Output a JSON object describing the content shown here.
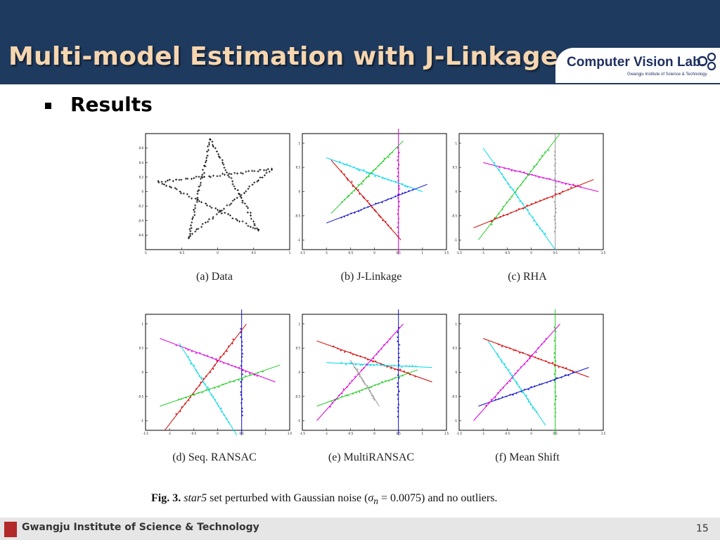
{
  "slide": {
    "title": "Multi-model Estimation with J-Linkage",
    "bullet": "Results",
    "page_number": "15",
    "footer_institute": "Gwangju Institute of Science & Technology"
  },
  "logo": {
    "main": "Computer Vision Lab.",
    "sub": "Gwangju Institute of Science & Technology"
  },
  "colors": {
    "header_bg": "#1f3a5f",
    "title_text": "#f6d6b0",
    "footer_bg": "#e6e6e6",
    "red": "#d40000",
    "green": "#22cc22",
    "blue": "#1010cc",
    "cyan": "#00d8e8",
    "magenta": "#dd00dd",
    "gray": "#999999",
    "black": "#000000"
  },
  "figure": {
    "label": "Fig. 3.",
    "dataset": "star5",
    "text_mid": "set perturbed with Gaussian noise (",
    "sigma_symbol": "σ",
    "sigma_sub": "n",
    "sigma_value": "= 0.0075)",
    "text_end": "and no outliers."
  },
  "chart_data": [
    {
      "type": "scatter",
      "title": "(a) Data",
      "xlim": [
        -1,
        1
      ],
      "ylim": [
        -0.8,
        0.8
      ],
      "xticks": [
        "-1",
        "-0.5",
        "0",
        "0.5",
        "1"
      ],
      "yticks": [
        "0.6",
        "0.4",
        "0.2",
        "0",
        "-0.2",
        "-0.4",
        "-0.6"
      ],
      "series": [
        {
          "color": "#000000",
          "points": "star5 samples along 5 lines"
        }
      ],
      "lines": []
    },
    {
      "type": "scatter",
      "title": "(b) J-Linkage",
      "xlim": [
        -1.5,
        1.5
      ],
      "ylim": [
        -1.2,
        1.2
      ],
      "xticks": [
        "-1.5",
        "-1",
        "-0.5",
        "0",
        "0.5",
        "1",
        "1.5"
      ],
      "yticks": [
        "1",
        "0.5",
        "0",
        "-0.5",
        "-1"
      ],
      "lines": [
        {
          "color": "#dd00dd",
          "from": [
            0.5,
            1.3
          ],
          "to": [
            0.5,
            -1.3
          ]
        },
        {
          "color": "#00d8e8",
          "from": [
            -1.0,
            0.7
          ],
          "to": [
            1.0,
            0.0
          ]
        },
        {
          "color": "#22cc22",
          "from": [
            -0.9,
            -0.45
          ],
          "to": [
            0.6,
            1.05
          ]
        },
        {
          "color": "#1010cc",
          "from": [
            -1.0,
            -0.65
          ],
          "to": [
            1.1,
            0.15
          ]
        },
        {
          "color": "#d40000",
          "from": [
            -0.9,
            0.65
          ],
          "to": [
            0.55,
            -1.0
          ]
        }
      ]
    },
    {
      "type": "scatter",
      "title": "(c) RHA",
      "xlim": [
        -1.5,
        1.5
      ],
      "ylim": [
        -1.2,
        1.2
      ],
      "xticks": [
        "-1.5",
        "-1",
        "-0.5",
        "0",
        "0.5",
        "1",
        "1.5"
      ],
      "yticks": [
        "1",
        "0.5",
        "0",
        "-0.5",
        "-1"
      ],
      "lines": [
        {
          "color": "#999999",
          "from": [
            0.5,
            1.2
          ],
          "to": [
            0.5,
            -1.2
          ]
        },
        {
          "color": "#dd00dd",
          "from": [
            -1.0,
            0.6
          ],
          "to": [
            1.4,
            0.0
          ]
        },
        {
          "color": "#22cc22",
          "from": [
            -1.1,
            -1.0
          ],
          "to": [
            0.6,
            1.2
          ]
        },
        {
          "color": "#00d8e8",
          "from": [
            -1.0,
            0.9
          ],
          "to": [
            0.5,
            -1.2
          ]
        },
        {
          "color": "#d40000",
          "from": [
            -1.2,
            -0.75
          ],
          "to": [
            1.3,
            0.25
          ]
        }
      ]
    },
    {
      "type": "scatter",
      "title": "(d) Seq. RANSAC",
      "xlim": [
        -1.5,
        1.5
      ],
      "ylim": [
        -1.2,
        1.2
      ],
      "xticks": [
        "-1.5",
        "-1",
        "-0.5",
        "0",
        "0.5",
        "1",
        "1.5"
      ],
      "yticks": [
        "1",
        "0.5",
        "0",
        "-0.5",
        "-1"
      ],
      "lines": [
        {
          "color": "#1010cc",
          "from": [
            0.5,
            1.3
          ],
          "to": [
            0.5,
            -1.3
          ]
        },
        {
          "color": "#d40000",
          "from": [
            -1.1,
            -1.2
          ],
          "to": [
            0.6,
            1.0
          ]
        },
        {
          "color": "#22cc22",
          "from": [
            -1.2,
            -0.7
          ],
          "to": [
            1.3,
            0.15
          ]
        },
        {
          "color": "#dd00dd",
          "from": [
            -1.2,
            0.7
          ],
          "to": [
            1.2,
            -0.2
          ]
        },
        {
          "color": "#00d8e8",
          "from": [
            -0.8,
            0.6
          ],
          "to": [
            0.4,
            -1.3
          ]
        }
      ]
    },
    {
      "type": "scatter",
      "title": "(e) MultiRANSAC",
      "xlim": [
        -1.5,
        1.5
      ],
      "ylim": [
        -1.2,
        1.2
      ],
      "xticks": [
        "-1.5",
        "-1",
        "-0.5",
        "0",
        "0.5",
        "1",
        "1.5"
      ],
      "yticks": [
        "1",
        "0.5",
        "0",
        "-0.5",
        "-1"
      ],
      "lines": [
        {
          "color": "#1010cc",
          "from": [
            0.5,
            1.3
          ],
          "to": [
            0.5,
            -1.3
          ]
        },
        {
          "color": "#d40000",
          "from": [
            -1.2,
            0.65
          ],
          "to": [
            1.2,
            -0.2
          ]
        },
        {
          "color": "#00d8e8",
          "from": [
            -1.0,
            0.2
          ],
          "to": [
            1.2,
            0.1
          ]
        },
        {
          "color": "#22cc22",
          "from": [
            -1.2,
            -0.7
          ],
          "to": [
            0.9,
            0.05
          ]
        },
        {
          "color": "#dd00dd",
          "from": [
            -1.2,
            -1.0
          ],
          "to": [
            0.6,
            1.0
          ]
        },
        {
          "color": "#999999",
          "from": [
            -0.5,
            0.25
          ],
          "to": [
            0.1,
            -0.7
          ]
        }
      ]
    },
    {
      "type": "scatter",
      "title": "(f) Mean Shift",
      "xlim": [
        -1.5,
        1.5
      ],
      "ylim": [
        -1.2,
        1.2
      ],
      "xticks": [
        "-1.5",
        "-1",
        "-0.5",
        "0",
        "0.5",
        "1",
        "1.5"
      ],
      "yticks": [
        "1",
        "0.5",
        "0",
        "-0.5",
        "-1"
      ],
      "lines": [
        {
          "color": "#22cc22",
          "from": [
            0.5,
            1.3
          ],
          "to": [
            0.5,
            -1.3
          ]
        },
        {
          "color": "#d40000",
          "from": [
            -1.0,
            0.7
          ],
          "to": [
            1.2,
            -0.1
          ]
        },
        {
          "color": "#1010cc",
          "from": [
            -1.1,
            -0.7
          ],
          "to": [
            1.2,
            0.1
          ]
        },
        {
          "color": "#dd00dd",
          "from": [
            -1.2,
            -1.0
          ],
          "to": [
            0.6,
            1.0
          ]
        },
        {
          "color": "#00d8e8",
          "from": [
            -0.9,
            0.65
          ],
          "to": [
            0.3,
            -1.1
          ]
        }
      ]
    }
  ]
}
